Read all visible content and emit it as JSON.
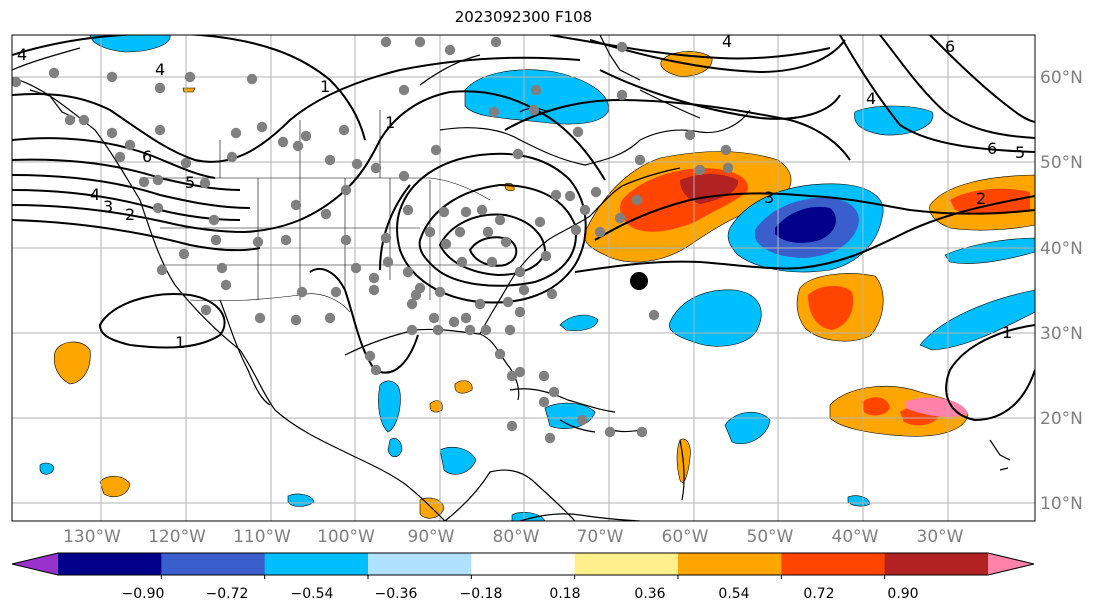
{
  "title": "2023092300 F108",
  "map": {
    "lat_labels": [
      "60°N",
      "50°N",
      "40°N",
      "30°N",
      "20°N",
      "10°N"
    ],
    "lon_labels": [
      "130°W",
      "120°W",
      "110°W",
      "100°W",
      "90°W",
      "80°W",
      "70°W",
      "60°W",
      "50°W",
      "40°W",
      "30°W"
    ],
    "contour_labels": [
      "4",
      "4",
      "4",
      "3",
      "2",
      "5",
      "6",
      "1",
      "1",
      "2",
      "3",
      "4",
      "6",
      "5",
      "6",
      "4",
      "1",
      "1"
    ],
    "grid_visible": true,
    "marker": "filled-black-dot"
  },
  "colorbar": {
    "ticks": [
      "−0.90",
      "−0.72",
      "−0.54",
      "−0.36",
      "−0.18",
      "0.18",
      "0.36",
      "0.54",
      "0.72",
      "0.90"
    ],
    "colors": [
      "#9932cc",
      "#00008b",
      "#3a5fcd",
      "#00bfff",
      "#b0e2ff",
      "#ffffff",
      "#fff08c",
      "#ffa500",
      "#ff4500",
      "#b22222",
      "#ff82ab"
    ],
    "extend": "both"
  }
}
